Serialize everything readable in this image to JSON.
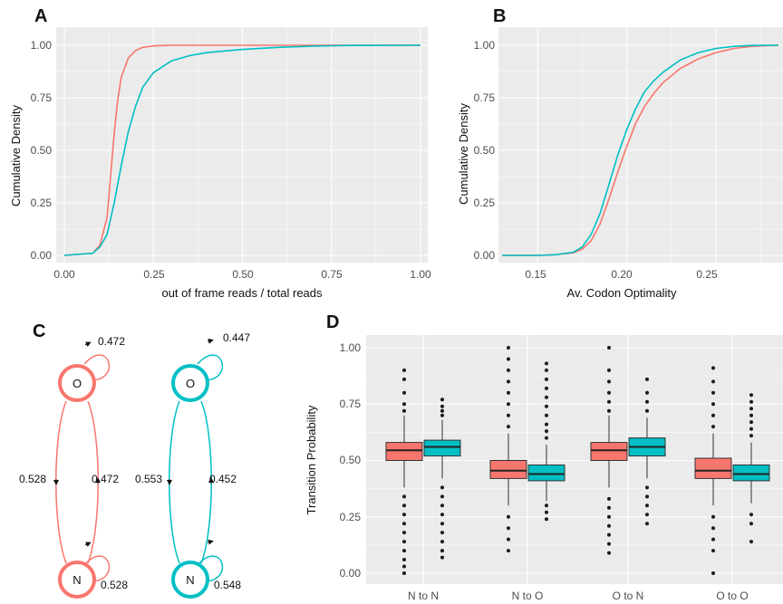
{
  "colors": {
    "red": "#F8766D",
    "teal": "#00BFC4",
    "panel_bg": "#EBEBEB",
    "grid": "#ffffff",
    "outlier": "#1a1a1a"
  },
  "chart_data": [
    {
      "panel": "A",
      "type": "line",
      "xlabel": "out of frame reads / total reads",
      "ylabel": "Cumulative Density",
      "xlim": [
        0,
        1
      ],
      "ylim": [
        0,
        1
      ],
      "xticks": [
        "0.00",
        "0.25",
        "0.50",
        "0.75",
        "1.00"
      ],
      "yticks": [
        "0.00",
        "0.25",
        "0.50",
        "0.75",
        "1.00"
      ],
      "grid": true,
      "series": [
        {
          "color": "#F8766D",
          "x": [
            0,
            0.08,
            0.1,
            0.12,
            0.13,
            0.14,
            0.15,
            0.16,
            0.18,
            0.2,
            0.22,
            0.25,
            0.3,
            0.4,
            1.0
          ],
          "y": [
            0,
            0.01,
            0.05,
            0.18,
            0.38,
            0.58,
            0.74,
            0.85,
            0.94,
            0.975,
            0.99,
            0.997,
            1.0,
            1.0,
            1.0
          ]
        },
        {
          "color": "#00BFC4",
          "x": [
            0,
            0.08,
            0.1,
            0.12,
            0.14,
            0.16,
            0.18,
            0.2,
            0.22,
            0.25,
            0.3,
            0.35,
            0.4,
            0.5,
            0.6,
            0.7,
            0.8,
            1.0
          ],
          "y": [
            0,
            0.01,
            0.04,
            0.1,
            0.25,
            0.43,
            0.59,
            0.71,
            0.8,
            0.87,
            0.925,
            0.95,
            0.965,
            0.98,
            0.99,
            0.996,
            0.999,
            1.0
          ]
        }
      ]
    },
    {
      "panel": "B",
      "type": "line",
      "xlabel": "Av. Codon Optimality",
      "ylabel": "Cumulative Density",
      "xlim": [
        0.13,
        0.285
      ],
      "ylim": [
        0,
        1
      ],
      "xticks": [
        "0.15",
        "0.20",
        "0.25"
      ],
      "yticks": [
        "0.00",
        "0.25",
        "0.50",
        "0.75",
        "1.00"
      ],
      "grid": true,
      "series": [
        {
          "color": "#F8766D",
          "x": [
            0.13,
            0.15,
            0.16,
            0.17,
            0.175,
            0.18,
            0.185,
            0.19,
            0.195,
            0.2,
            0.205,
            0.21,
            0.215,
            0.22,
            0.23,
            0.24,
            0.25,
            0.26,
            0.27,
            0.285
          ],
          "y": [
            0,
            0.0,
            0.003,
            0.012,
            0.03,
            0.07,
            0.15,
            0.27,
            0.4,
            0.52,
            0.63,
            0.71,
            0.77,
            0.82,
            0.89,
            0.935,
            0.965,
            0.985,
            0.995,
            1.0
          ]
        },
        {
          "color": "#00BFC4",
          "x": [
            0.13,
            0.15,
            0.16,
            0.17,
            0.175,
            0.18,
            0.185,
            0.19,
            0.195,
            0.2,
            0.205,
            0.21,
            0.215,
            0.22,
            0.23,
            0.24,
            0.25,
            0.26,
            0.27,
            0.285
          ],
          "y": [
            0,
            0.0,
            0.003,
            0.015,
            0.04,
            0.1,
            0.2,
            0.34,
            0.48,
            0.6,
            0.7,
            0.78,
            0.83,
            0.87,
            0.93,
            0.965,
            0.985,
            0.995,
            0.999,
            1.0
          ]
        }
      ]
    },
    {
      "panel": "D",
      "type": "box",
      "xlabel": "",
      "ylabel": "Transition Probability",
      "ylim": [
        0,
        1
      ],
      "yticks": [
        "0.00",
        "0.25",
        "0.50",
        "0.75",
        "1.00"
      ],
      "categories": [
        "N to N",
        "N to O",
        "O to N",
        "O to O"
      ],
      "grid": true,
      "series": [
        {
          "color": "#F8766D",
          "boxes": [
            {
              "q1": 0.5,
              "median": 0.545,
              "q3": 0.58,
              "whisker_low": 0.38,
              "whisker_high": 0.7,
              "outliers": [
                0.0,
                0.03,
                0.06,
                0.1,
                0.14,
                0.18,
                0.22,
                0.26,
                0.3,
                0.34,
                0.72,
                0.75,
                0.8,
                0.86,
                0.9
              ]
            },
            {
              "q1": 0.42,
              "median": 0.455,
              "q3": 0.5,
              "whisker_low": 0.3,
              "whisker_high": 0.62,
              "outliers": [
                0.1,
                0.15,
                0.2,
                0.25,
                0.65,
                0.7,
                0.75,
                0.8,
                0.85,
                0.9,
                0.95,
                1.0
              ]
            },
            {
              "q1": 0.5,
              "median": 0.545,
              "q3": 0.58,
              "whisker_low": 0.38,
              "whisker_high": 0.7,
              "outliers": [
                0.09,
                0.13,
                0.17,
                0.21,
                0.25,
                0.29,
                0.33,
                0.72,
                0.76,
                0.8,
                0.85,
                0.9,
                1.0
              ]
            },
            {
              "q1": 0.42,
              "median": 0.455,
              "q3": 0.51,
              "whisker_low": 0.3,
              "whisker_high": 0.62,
              "outliers": [
                0.0,
                0.1,
                0.15,
                0.2,
                0.25,
                0.65,
                0.7,
                0.75,
                0.8,
                0.85,
                0.91
              ]
            }
          ]
        },
        {
          "color": "#00BFC4",
          "boxes": [
            {
              "q1": 0.52,
              "median": 0.56,
              "q3": 0.59,
              "whisker_low": 0.42,
              "whisker_high": 0.68,
              "outliers": [
                0.07,
                0.1,
                0.14,
                0.18,
                0.22,
                0.26,
                0.3,
                0.34,
                0.38,
                0.7,
                0.72,
                0.74,
                0.77
              ]
            },
            {
              "q1": 0.41,
              "median": 0.44,
              "q3": 0.48,
              "whisker_low": 0.32,
              "whisker_high": 0.57,
              "outliers": [
                0.24,
                0.27,
                0.3,
                0.6,
                0.63,
                0.66,
                0.7,
                0.74,
                0.78,
                0.82,
                0.86,
                0.9,
                0.93
              ]
            },
            {
              "q1": 0.52,
              "median": 0.56,
              "q3": 0.6,
              "whisker_low": 0.42,
              "whisker_high": 0.69,
              "outliers": [
                0.22,
                0.26,
                0.3,
                0.34,
                0.38,
                0.72,
                0.76,
                0.8,
                0.86
              ]
            },
            {
              "q1": 0.41,
              "median": 0.44,
              "q3": 0.48,
              "whisker_low": 0.31,
              "whisker_high": 0.58,
              "outliers": [
                0.14,
                0.22,
                0.26,
                0.61,
                0.64,
                0.67,
                0.7,
                0.73,
                0.76,
                0.79
              ]
            }
          ]
        }
      ]
    }
  ],
  "panel_c": {
    "label": "C",
    "graphs": [
      {
        "color": "#F8766D",
        "top_node": "O",
        "bottom_node": "N",
        "top_self": "0.472",
        "left_edge": "0.528",
        "right_edge": "0.472",
        "bottom_self": "0.528"
      },
      {
        "color": "#00BFC4",
        "top_node": "O",
        "bottom_node": "N",
        "top_self": "0.447",
        "left_edge": "0.553",
        "right_edge": "0.452",
        "bottom_self": "0.548"
      }
    ]
  }
}
